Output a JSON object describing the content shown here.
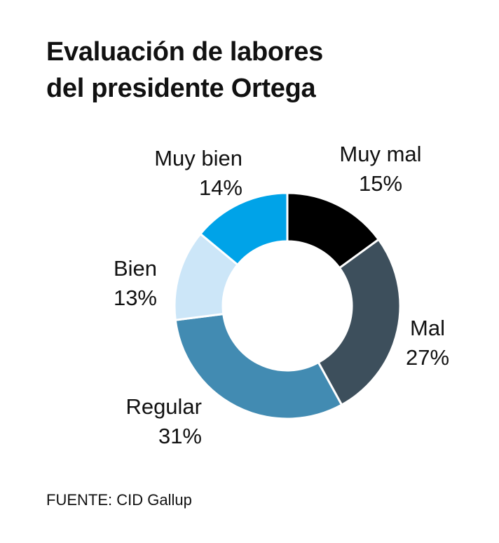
{
  "title_lines": [
    "Evaluación de labores",
    "del presidente Ortega"
  ],
  "source": "FUENTE: CID Gallup",
  "chart_data": {
    "type": "pie",
    "title": "Evaluación de labores del presidente Ortega",
    "donut": true,
    "categories": [
      "Muy mal",
      "Mal",
      "Regular",
      "Bien",
      "Muy bien"
    ],
    "values": [
      15,
      27,
      31,
      13,
      14
    ],
    "value_labels": [
      "15%",
      "27%",
      "31%",
      "13%",
      "14%"
    ],
    "colors": [
      "#000000",
      "#3d4f5c",
      "#428bb2",
      "#cce6f8",
      "#00a3e8"
    ],
    "start_angle": "12 o'clock",
    "direction": "clockwise"
  }
}
